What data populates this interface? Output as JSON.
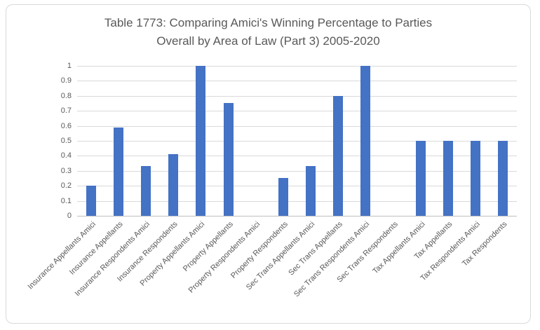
{
  "chart": {
    "title_line1": "Table 1773: Comparing Amici's Winning Percentage to Parties",
    "title_line2": "Overall by Area of Law (Part 3) 2005-2020"
  },
  "chart_data": {
    "type": "bar",
    "title": "Table 1773: Comparing Amici's Winning Percentage to Parties Overall by Area of Law (Part 3) 2005-2020",
    "categories": [
      "Insurance Appellants Amici",
      "Insurance Appellants",
      "Insurance Respondents Amici",
      "Insurance Respondents",
      "Property Appellants Amici",
      "Property Appellants",
      "Property Respondents Amici",
      "Property Respondents",
      "Sec Trans Appellants Amici",
      "Sec Trans Appellants",
      "Sec Trans Respondents Amici",
      "Sec Trans Respondents",
      "Tax Appellants Amici",
      "Tax Appellants",
      "Tax Respondents Amici",
      "Tax Respondents"
    ],
    "values": [
      0.2,
      0.59,
      0.33,
      0.41,
      1,
      0.75,
      0,
      0.25,
      0.33,
      0.8,
      1,
      0,
      0.5,
      0.5,
      0.5,
      0.5
    ],
    "xlabel": "",
    "ylabel": "",
    "ylim": [
      0,
      1
    ],
    "yticks": [
      "1",
      "0.9",
      "0.8",
      "0.7",
      "0.6",
      "0.5",
      "0.4",
      "0.3",
      "0.2",
      "0.1",
      "0"
    ],
    "grid": true,
    "legend": false,
    "bar_color": "#4472c4",
    "gridline_color": "#d9d9d9",
    "axis_text_color": "#595959",
    "title_color": "#595959"
  }
}
